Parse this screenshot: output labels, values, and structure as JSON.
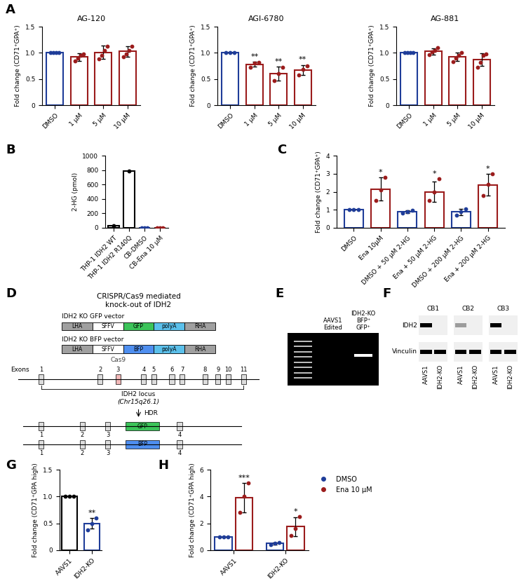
{
  "chart_data": [
    {
      "panel": "A",
      "type": "bar",
      "title": "AG-120",
      "y_label": "Fold change (CD71⁺GPA⁺)",
      "categories": [
        "DMSO",
        "1 μM",
        "5 μM",
        "10 μM"
      ],
      "values": [
        1.0,
        0.92,
        1.01,
        1.03
      ],
      "errors": [
        0,
        0.07,
        0.13,
        0.1
      ],
      "points": [
        [
          1.0,
          1.0,
          1.0,
          1.0
        ],
        [
          0.85,
          0.9,
          0.95,
          0.98
        ],
        [
          0.88,
          0.95,
          1.05,
          1.12
        ],
        [
          0.92,
          0.98,
          1.05,
          1.12
        ]
      ],
      "colors": [
        "#1f3d99",
        "#9b1c1c",
        "#9b1c1c",
        "#9b1c1c"
      ],
      "ylim": [
        0,
        1.5
      ],
      "yticks": [
        0,
        0.5,
        1.0,
        1.5
      ]
    },
    {
      "type": "bar",
      "title": "AGI-6780",
      "y_label": "Fold change (CD71⁺GPA⁺)",
      "categories": [
        "DMSO",
        "1 μM",
        "5 μM",
        "10 μM"
      ],
      "values": [
        1.0,
        0.78,
        0.6,
        0.67
      ],
      "errors": [
        0,
        0.05,
        0.13,
        0.1
      ],
      "points": [
        [
          1.0,
          1.0,
          1.0
        ],
        [
          0.72,
          0.8,
          0.82
        ],
        [
          0.47,
          0.6,
          0.72
        ],
        [
          0.57,
          0.68,
          0.75
        ]
      ],
      "annotations": [
        null,
        "**",
        "**",
        "**"
      ],
      "colors": [
        "#1f3d99",
        "#9b1c1c",
        "#9b1c1c",
        "#9b1c1c"
      ],
      "ylim": [
        0,
        1.5
      ],
      "yticks": [
        0,
        0.5,
        1.0,
        1.5
      ]
    },
    {
      "type": "bar",
      "title": "AG-881",
      "y_label": "Fold change (CD71⁺GPA⁺)",
      "categories": [
        "DMSO",
        "1 μM",
        "5 μM",
        "10 μM"
      ],
      "values": [
        1.0,
        1.03,
        0.92,
        0.87
      ],
      "errors": [
        0,
        0.06,
        0.08,
        0.12
      ],
      "points": [
        [
          1.0,
          1.0,
          1.0,
          1.0
        ],
        [
          0.97,
          1.02,
          1.05,
          1.1
        ],
        [
          0.83,
          0.9,
          0.95,
          1.0
        ],
        [
          0.72,
          0.82,
          0.95,
          0.98
        ]
      ],
      "colors": [
        "#1f3d99",
        "#9b1c1c",
        "#9b1c1c",
        "#9b1c1c"
      ],
      "ylim": [
        0,
        1.5
      ],
      "yticks": [
        0,
        0.5,
        1.0,
        1.5
      ]
    },
    {
      "panel": "B",
      "type": "bar",
      "y_label": "2-HG (pmol)",
      "categories": [
        "THP-1 IDH2 WT",
        "THP-1 IDH2 R140Q",
        "CB-DMSO",
        "CB-Ena 10 μM"
      ],
      "values": [
        25,
        790,
        3,
        3
      ],
      "points": [
        [
          25
        ],
        [
          790
        ],
        [
          2,
          3,
          4
        ],
        [
          2,
          3,
          4
        ]
      ],
      "colors": [
        "#000000",
        "#000000",
        "#1f3d99",
        "#9b1c1c"
      ],
      "ylim": [
        0,
        1000
      ],
      "yticks": [
        0,
        200,
        400,
        600,
        800,
        1000
      ]
    },
    {
      "panel": "C",
      "type": "bar",
      "y_label": "Fold change (CD71⁺GPA⁺)",
      "categories": [
        "DMSO",
        "Ena 10μM",
        "DMSO + 50 μM 2-HG",
        "Ena + 50 μM 2-HG",
        "DMSO + 200 μM 2-HG",
        "Ena + 200 μM 2-HG"
      ],
      "values": [
        1.0,
        2.15,
        0.9,
        2.0,
        0.88,
        2.38
      ],
      "errors": [
        0,
        0.65,
        0.08,
        0.55,
        0.18,
        0.6
      ],
      "points": [
        [
          1.0,
          1.0,
          1.0
        ],
        [
          1.5,
          2.1,
          2.8
        ],
        [
          0.83,
          0.9,
          0.97
        ],
        [
          1.5,
          2.0,
          2.7
        ],
        [
          0.7,
          0.9,
          1.05
        ],
        [
          1.8,
          2.4,
          3.0
        ]
      ],
      "annotations": [
        null,
        "*",
        null,
        "*",
        null,
        "*"
      ],
      "colors": [
        "#1f3d99",
        "#9b1c1c",
        "#1f3d99",
        "#9b1c1c",
        "#1f3d99",
        "#9b1c1c"
      ],
      "ylim": [
        0,
        4
      ],
      "yticks": [
        0,
        1,
        2,
        3,
        4
      ]
    },
    {
      "panel": "G",
      "type": "bar",
      "y_label": "Fold change (CD71⁺GPA high)",
      "categories": [
        "AAVS1",
        "IDH2-KO"
      ],
      "values": [
        1.0,
        0.5
      ],
      "errors": [
        0,
        0.1
      ],
      "points": [
        [
          1.0,
          1.0,
          1.0
        ],
        [
          0.38,
          0.5,
          0.6
        ]
      ],
      "annotations": [
        null,
        "**"
      ],
      "colors": [
        "#000000",
        "#1f3d99"
      ],
      "ylim": [
        0,
        1.5
      ],
      "yticks": [
        0,
        0.5,
        1.0,
        1.5
      ]
    },
    {
      "panel": "H",
      "type": "bar",
      "y_label": "Fold change (CD71⁺GPA high)",
      "categories": [
        "AAVS1",
        "IDH2-KO"
      ],
      "legend": "upper left",
      "series": [
        {
          "name": "DMSO",
          "color": "#1f3d99",
          "values": [
            1.0,
            0.5
          ],
          "errors": [
            0,
            0.08
          ],
          "points": [
            [
              1.0,
              1.0,
              1.0
            ],
            [
              0.42,
              0.5,
              0.58
            ]
          ]
        },
        {
          "name": "Ena 10 μM",
          "color": "#9b1c1c",
          "values": [
            3.9,
            1.75
          ],
          "errors": [
            1.1,
            0.7
          ],
          "points": [
            [
              2.8,
              4.0,
              5.0
            ],
            [
              1.1,
              1.6,
              2.5
            ]
          ],
          "annotations": [
            "***",
            "*"
          ]
        }
      ],
      "ylim": [
        0,
        6
      ],
      "yticks": [
        0,
        2,
        4,
        6
      ]
    }
  ],
  "diagram": {
    "panel": "D",
    "title": "CRISPR/Cas9 mediated\nknock-out of IDH2",
    "vectors": [
      {
        "name": "IDH2 KO GFP vector",
        "elements": [
          {
            "label": "LHA",
            "color": "#a0a0a0"
          },
          {
            "label": "SFFV",
            "color": "#ffffff"
          },
          {
            "label": "GFP",
            "color": "#3cc45a"
          },
          {
            "label": "polyA",
            "color": "#5bc0eb"
          },
          {
            "label": "RHA",
            "color": "#a0a0a0"
          }
        ]
      },
      {
        "name": "IDH2 KO BFP vector",
        "elements": [
          {
            "label": "LHA",
            "color": "#a0a0a0"
          },
          {
            "label": "SFFV",
            "color": "#ffffff"
          },
          {
            "label": "BFP",
            "color": "#4f8ff0"
          },
          {
            "label": "polyA",
            "color": "#5bc0eb"
          },
          {
            "label": "RHA",
            "color": "#a0a0a0"
          }
        ]
      }
    ],
    "exons_label": "Exons",
    "exon_numbers": [
      1,
      2,
      3,
      4,
      5,
      6,
      7,
      8,
      9,
      10,
      11
    ],
    "enzyme": "Cas9",
    "locus": "IDH2 locus",
    "chromosome": "(Chr15q26.1)",
    "repair": "HDR",
    "alleles": [
      {
        "exons_before": [
          1,
          2,
          3
        ],
        "insert": {
          "label": "GFP",
          "color": "#3cc45a"
        },
        "exons_after": [
          4
        ]
      },
      {
        "exons_before": [
          1,
          2,
          3
        ],
        "insert": {
          "label": "BFP",
          "color": "#4f8ff0"
        },
        "exons_after": [
          4
        ]
      }
    ]
  },
  "gel": {
    "panel": "E",
    "lanes": [
      null,
      "AAVS1\nEdited",
      "IDH2-KO\nBFP⁺\nGFP⁺"
    ]
  },
  "blot": {
    "panel": "F",
    "samples": [
      "CB1",
      "CB2",
      "CB3"
    ],
    "proteins": [
      "IDH2",
      "Vinculin"
    ],
    "lanes": [
      "AAVS1",
      "IDH2-KO"
    ]
  }
}
